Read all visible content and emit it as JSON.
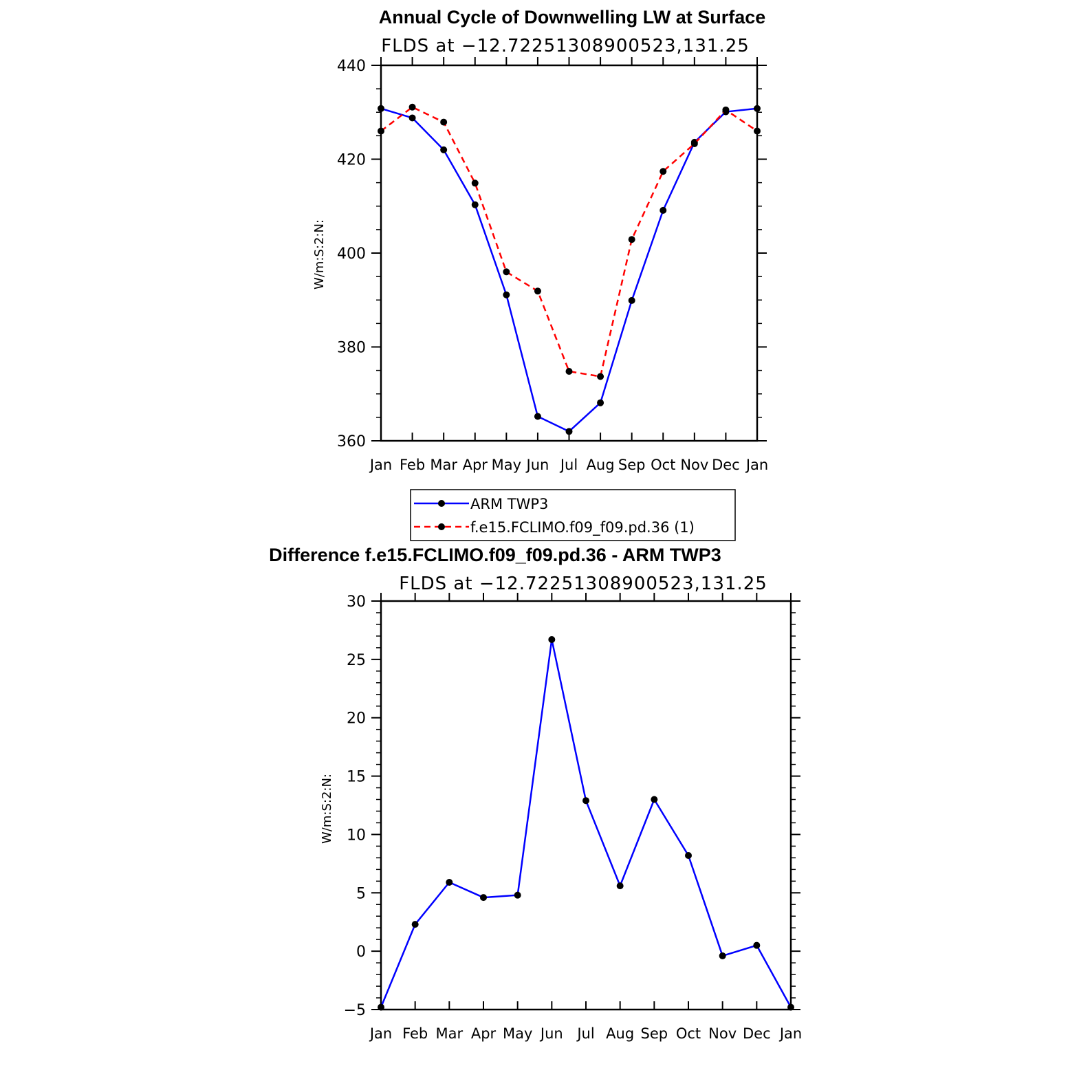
{
  "chart_data": [
    {
      "type": "line",
      "title": "Annual Cycle of Downwelling LW at Surface",
      "subtitle": "FLDS at −12.72251308900523,131.25",
      "ylabel": "W/m:S:2:N:",
      "xlabel": "",
      "ylim": [
        360,
        440
      ],
      "yticks": [
        "360",
        "380",
        "400",
        "420",
        "440"
      ],
      "categories": [
        "Jan",
        "Feb",
        "Mar",
        "Apr",
        "May",
        "Jun",
        "Jul",
        "Aug",
        "Sep",
        "Oct",
        "Nov",
        "Dec",
        "Jan"
      ],
      "series": [
        {
          "name": "ARM TWP3",
          "color": "#0000ff",
          "dash": "solid",
          "values": [
            430.8,
            428.8,
            422.0,
            410.3,
            391.1,
            365.2,
            362.0,
            368.1,
            389.9,
            409.1,
            423.6,
            430.1,
            430.8
          ]
        },
        {
          "name": "f.e15.FCLIMO.f09_f09.pd.36 (1)",
          "color": "#ff0000",
          "dash": "dashed",
          "values": [
            426.0,
            431.1,
            427.9,
            414.9,
            396.0,
            391.9,
            374.8,
            373.7,
            402.9,
            417.4,
            423.3,
            430.5,
            426.0
          ]
        }
      ],
      "legend": [
        "ARM TWP3",
        "f.e15.FCLIMO.f09_f09.pd.36 (1)"
      ]
    },
    {
      "type": "line",
      "title": "Difference f.e15.FCLIMO.f09_f09.pd.36 - ARM TWP3",
      "subtitle": "FLDS at −12.72251308900523,131.25",
      "ylabel": "W/m:S:2:N:",
      "xlabel": "",
      "ylim": [
        -5,
        30
      ],
      "yticks": [
        "−5",
        "0",
        "5",
        "10",
        "15",
        "20",
        "25",
        "30"
      ],
      "categories": [
        "Jan",
        "Feb",
        "Mar",
        "Apr",
        "May",
        "Jun",
        "Jul",
        "Aug",
        "Sep",
        "Oct",
        "Nov",
        "Dec",
        "Jan"
      ],
      "series": [
        {
          "name": "Difference",
          "color": "#0000ff",
          "dash": "solid",
          "values": [
            -4.8,
            2.3,
            5.9,
            4.6,
            4.8,
            26.7,
            12.9,
            5.6,
            13.0,
            8.2,
            -0.4,
            0.5,
            -4.8
          ]
        }
      ]
    }
  ]
}
